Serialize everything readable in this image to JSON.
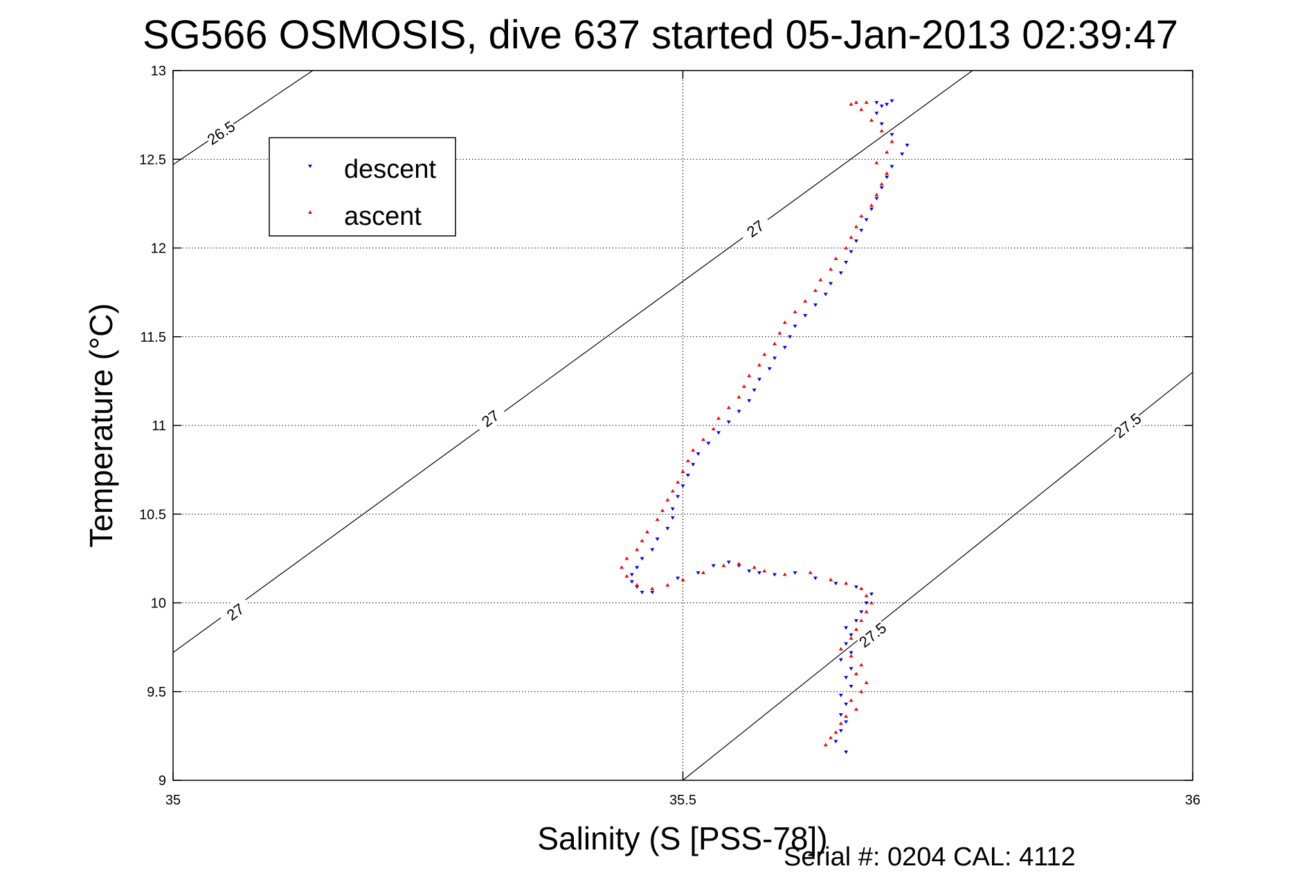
{
  "chart_data": {
    "type": "scatter",
    "title": "SG566 OSMOSIS, dive 637 started 05-Jan-2013 02:39:47",
    "xlabel": "Salinity (S [PSS-78])",
    "ylabel": "Temperature (°C)",
    "xlim": [
      35,
      36
    ],
    "ylim": [
      9,
      13
    ],
    "x_ticks": [
      "35",
      "35.5",
      "36"
    ],
    "y_ticks": [
      "9",
      "9.5",
      "10",
      "10.5",
      "11",
      "11.5",
      "12",
      "12.5",
      "13"
    ],
    "grid": true,
    "legend_position": "top-left",
    "footer": "Serial #: 0204  CAL: 4112",
    "isopycnals": [
      {
        "value": "26.5",
        "points": [
          [
            35.0,
            12.47
          ],
          [
            35.137,
            13.0
          ]
        ],
        "labels": [
          [
            35.047,
            12.65
          ]
        ]
      },
      {
        "value": "27",
        "points": [
          [
            35.0,
            9.72
          ],
          [
            35.784,
            13.0
          ]
        ],
        "labels": [
          [
            35.061,
            9.95
          ],
          [
            35.311,
            11.04
          ],
          [
            35.571,
            12.11
          ]
        ]
      },
      {
        "value": "27.5",
        "points": [
          [
            35.5,
            9.0
          ],
          [
            36.0,
            11.3
          ]
        ],
        "labels": [
          [
            35.686,
            9.82
          ],
          [
            35.936,
            11.0
          ]
        ]
      }
    ],
    "series": [
      {
        "name": "descent",
        "color": "#0000ff",
        "marker": "triangle-down",
        "points": [
          [
            35.66,
            9.16
          ],
          [
            35.65,
            9.22
          ],
          [
            35.655,
            9.28
          ],
          [
            35.66,
            9.33
          ],
          [
            35.655,
            9.37
          ],
          [
            35.66,
            9.43
          ],
          [
            35.655,
            9.48
          ],
          [
            35.665,
            9.53
          ],
          [
            35.66,
            9.58
          ],
          [
            35.665,
            9.63
          ],
          [
            35.655,
            9.68
          ],
          [
            35.665,
            9.72
          ],
          [
            35.66,
            9.77
          ],
          [
            35.665,
            9.82
          ],
          [
            35.66,
            9.86
          ],
          [
            35.67,
            9.9
          ],
          [
            35.675,
            9.95
          ],
          [
            35.68,
            10.0
          ],
          [
            35.685,
            10.05
          ],
          [
            35.67,
            10.09
          ],
          [
            35.65,
            10.11
          ],
          [
            35.63,
            10.14
          ],
          [
            35.61,
            10.17
          ],
          [
            35.59,
            10.16
          ],
          [
            35.575,
            10.17
          ],
          [
            35.565,
            10.18
          ],
          [
            35.555,
            10.21
          ],
          [
            35.545,
            10.23
          ],
          [
            35.53,
            10.21
          ],
          [
            35.515,
            10.17
          ],
          [
            35.495,
            10.14
          ],
          [
            35.47,
            10.06
          ],
          [
            35.46,
            10.06
          ],
          [
            35.455,
            10.09
          ],
          [
            35.45,
            10.12
          ],
          [
            35.45,
            10.16
          ],
          [
            35.455,
            10.2
          ],
          [
            35.46,
            10.25
          ],
          [
            35.47,
            10.3
          ],
          [
            35.475,
            10.36
          ],
          [
            35.485,
            10.42
          ],
          [
            35.49,
            10.48
          ],
          [
            35.49,
            10.53
          ],
          [
            35.495,
            10.6
          ],
          [
            35.5,
            10.66
          ],
          [
            35.505,
            10.72
          ],
          [
            35.51,
            10.78
          ],
          [
            35.515,
            10.84
          ],
          [
            35.525,
            10.9
          ],
          [
            35.535,
            10.96
          ],
          [
            35.545,
            11.02
          ],
          [
            35.555,
            11.08
          ],
          [
            35.565,
            11.14
          ],
          [
            35.57,
            11.2
          ],
          [
            35.575,
            11.26
          ],
          [
            35.585,
            11.32
          ],
          [
            35.59,
            11.38
          ],
          [
            35.6,
            11.44
          ],
          [
            35.605,
            11.5
          ],
          [
            35.61,
            11.56
          ],
          [
            35.62,
            11.62
          ],
          [
            35.63,
            11.68
          ],
          [
            35.64,
            11.74
          ],
          [
            35.645,
            11.8
          ],
          [
            35.655,
            11.86
          ],
          [
            35.66,
            11.92
          ],
          [
            35.665,
            11.98
          ],
          [
            35.67,
            12.04
          ],
          [
            35.675,
            12.1
          ],
          [
            35.68,
            12.16
          ],
          [
            35.685,
            12.22
          ],
          [
            35.69,
            12.28
          ],
          [
            35.695,
            12.34
          ],
          [
            35.7,
            12.4
          ],
          [
            35.705,
            12.46
          ],
          [
            35.715,
            12.53
          ],
          [
            35.72,
            12.58
          ],
          [
            35.705,
            12.64
          ],
          [
            35.695,
            12.7
          ],
          [
            35.69,
            12.76
          ],
          [
            35.695,
            12.8
          ],
          [
            35.705,
            12.83
          ],
          [
            35.69,
            12.82
          ],
          [
            35.7,
            12.81
          ]
        ]
      },
      {
        "name": "ascent",
        "color": "#ff0000",
        "marker": "triangle-up",
        "points": [
          [
            35.64,
            9.2
          ],
          [
            35.645,
            9.24
          ],
          [
            35.65,
            9.27
          ],
          [
            35.655,
            9.32
          ],
          [
            35.66,
            9.36
          ],
          [
            35.67,
            9.4
          ],
          [
            35.665,
            9.45
          ],
          [
            35.675,
            9.5
          ],
          [
            35.68,
            9.55
          ],
          [
            35.67,
            9.6
          ],
          [
            35.675,
            9.65
          ],
          [
            35.665,
            9.7
          ],
          [
            35.655,
            9.74
          ],
          [
            35.665,
            9.8
          ],
          [
            35.67,
            9.85
          ],
          [
            35.675,
            9.9
          ],
          [
            35.68,
            9.95
          ],
          [
            35.685,
            10.0
          ],
          [
            35.68,
            10.04
          ],
          [
            35.675,
            10.08
          ],
          [
            35.66,
            10.11
          ],
          [
            35.645,
            10.13
          ],
          [
            35.625,
            10.17
          ],
          [
            35.6,
            10.16
          ],
          [
            35.58,
            10.18
          ],
          [
            35.57,
            10.2
          ],
          [
            35.555,
            10.22
          ],
          [
            35.54,
            10.21
          ],
          [
            35.52,
            10.17
          ],
          [
            35.5,
            10.13
          ],
          [
            35.485,
            10.1
          ],
          [
            35.47,
            10.08
          ],
          [
            35.455,
            10.1
          ],
          [
            35.445,
            10.15
          ],
          [
            35.44,
            10.2
          ],
          [
            35.445,
            10.25
          ],
          [
            35.455,
            10.3
          ],
          [
            35.46,
            10.35
          ],
          [
            35.465,
            10.4
          ],
          [
            35.475,
            10.47
          ],
          [
            35.48,
            10.52
          ],
          [
            35.485,
            10.58
          ],
          [
            35.49,
            10.63
          ],
          [
            35.495,
            10.68
          ],
          [
            35.5,
            10.74
          ],
          [
            35.505,
            10.8
          ],
          [
            35.51,
            10.86
          ],
          [
            35.52,
            10.92
          ],
          [
            35.53,
            10.98
          ],
          [
            35.535,
            11.04
          ],
          [
            35.545,
            11.1
          ],
          [
            35.555,
            11.16
          ],
          [
            35.56,
            11.22
          ],
          [
            35.565,
            11.28
          ],
          [
            35.575,
            11.34
          ],
          [
            35.58,
            11.4
          ],
          [
            35.59,
            11.46
          ],
          [
            35.595,
            11.52
          ],
          [
            35.6,
            11.58
          ],
          [
            35.61,
            11.64
          ],
          [
            35.62,
            11.7
          ],
          [
            35.63,
            11.76
          ],
          [
            35.635,
            11.82
          ],
          [
            35.645,
            11.88
          ],
          [
            35.65,
            11.94
          ],
          [
            35.66,
            12.0
          ],
          [
            35.665,
            12.06
          ],
          [
            35.67,
            12.12
          ],
          [
            35.675,
            12.18
          ],
          [
            35.685,
            12.24
          ],
          [
            35.69,
            12.3
          ],
          [
            35.695,
            12.36
          ],
          [
            35.7,
            12.42
          ],
          [
            35.69,
            12.48
          ],
          [
            35.7,
            12.54
          ],
          [
            35.705,
            12.6
          ],
          [
            35.695,
            12.66
          ],
          [
            35.685,
            12.72
          ],
          [
            35.675,
            12.78
          ],
          [
            35.665,
            12.81
          ],
          [
            35.67,
            12.82
          ],
          [
            35.68,
            12.82
          ]
        ]
      }
    ]
  }
}
